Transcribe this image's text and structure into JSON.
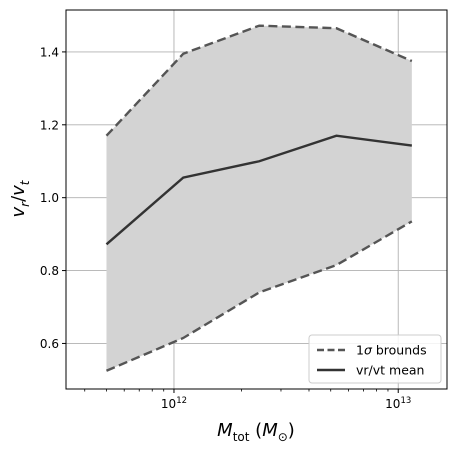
{
  "chart_data": {
    "type": "line",
    "xscale": "log",
    "x": [
      500000000000.0,
      1100000000000.0,
      2400000000000.0,
      5300000000000.0,
      11500000000000.0
    ],
    "xlim": [
      330000000000.0,
      16500000000000.0
    ],
    "ylim": [
      0.475,
      1.515
    ],
    "grid": true,
    "xlabel_main": "M",
    "xlabel_sub": "tot",
    "xlabel_unit_main": "M",
    "xlabel_unit_sub": "⊙",
    "ylabel_num_main": "v",
    "ylabel_num_sub": "r",
    "ylabel_den_main": "v",
    "ylabel_den_sub": "t",
    "yticks": [
      0.6,
      0.8,
      1.0,
      1.2,
      1.4
    ],
    "ytick_labels": [
      "0.6",
      "0.8",
      "1.0",
      "1.2",
      "1.4"
    ],
    "xticks_major": [
      1000000000000.0,
      10000000000000.0
    ],
    "xtick_labels": [
      {
        "base": "10",
        "exp": "12"
      },
      {
        "base": "10",
        "exp": "13"
      }
    ],
    "series": [
      {
        "name": "1σ brounds",
        "style": "dashed",
        "color": "#555555",
        "lower": [
          0.525,
          0.615,
          0.74,
          0.815,
          0.935
        ],
        "upper": [
          1.17,
          1.395,
          1.472,
          1.465,
          1.375
        ]
      },
      {
        "name": "vr/vt mean",
        "style": "solid",
        "color": "#333333",
        "values": [
          0.872,
          1.055,
          1.1,
          1.17,
          1.143
        ]
      }
    ],
    "fill_color": "#d3d3d3",
    "legend_position": "lower right",
    "legend": [
      {
        "label_main": "1",
        "label_sigma": "σ",
        "label_rest": " brounds",
        "style": "dashed"
      },
      {
        "label_main": "vr/vt mean",
        "style": "solid"
      }
    ]
  }
}
